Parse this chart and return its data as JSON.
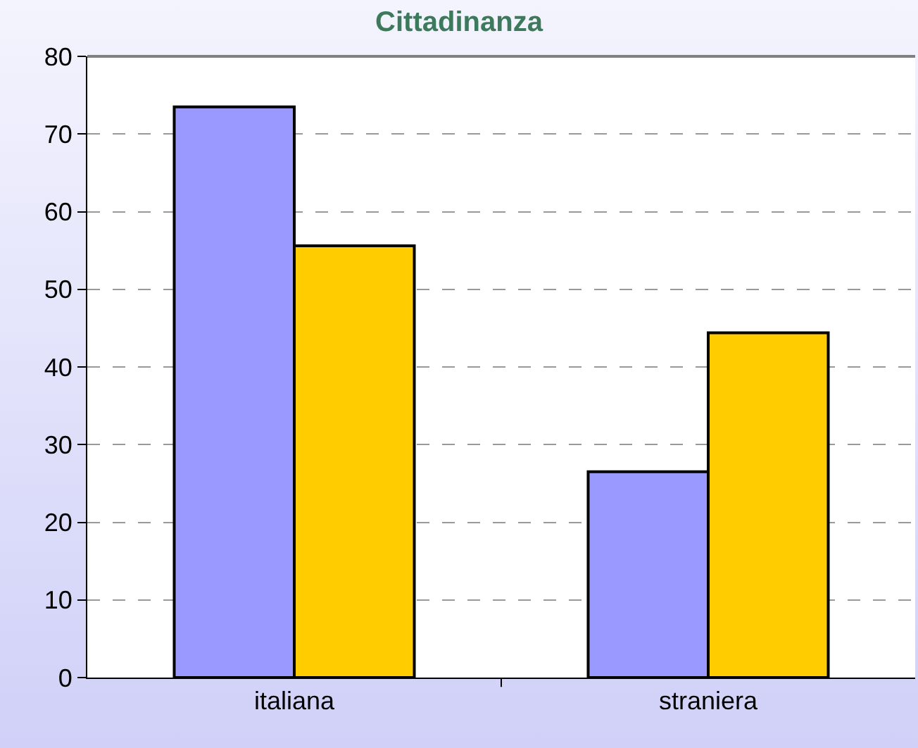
{
  "chart_data": {
    "type": "bar",
    "title": "Cittadinanza",
    "categories": [
      "italiana",
      "straniera"
    ],
    "series": [
      {
        "color": "#9999ff",
        "values": [
          73.5,
          26.5
        ]
      },
      {
        "color": "#ffcc00",
        "values": [
          55.6,
          44.4
        ]
      }
    ],
    "ylim": [
      0,
      80
    ],
    "yticks": [
      0,
      10,
      20,
      30,
      40,
      50,
      60,
      70,
      80
    ],
    "grid": "y"
  }
}
